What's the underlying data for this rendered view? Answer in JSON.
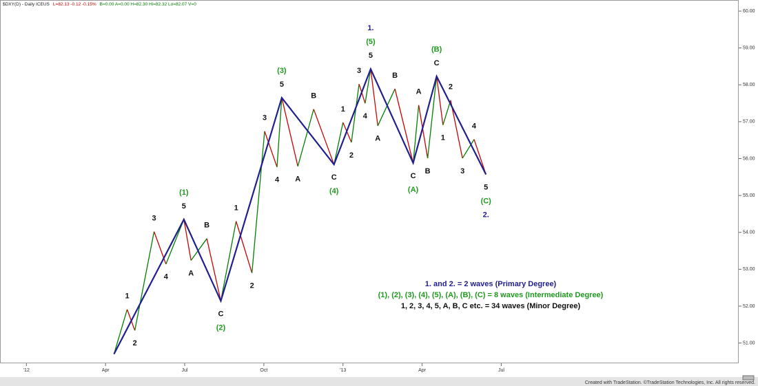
{
  "chart_data": {
    "type": "line",
    "header": [
      {
        "text": "$DXY(D) - Daily  ICEUS",
        "color": "#222222"
      },
      {
        "text": "L=82.13  -0.12  -0.15%",
        "color": "#cc0000"
      },
      {
        "text": "B=0.00  A=0.00  H=82.30  Hi=82.32  Lo=82.07  V=0",
        "color": "#008000"
      }
    ],
    "footer": "Created with TradeStation. ©TradeStation Technologies, Inc. All rights reserved.",
    "xlim": [
      -1,
      27
    ],
    "xticks": [
      {
        "value": 0,
        "label": "'12"
      },
      {
        "value": 3,
        "label": "Apr"
      },
      {
        "value": 6,
        "label": "Jul"
      },
      {
        "value": 9,
        "label": "Oct"
      },
      {
        "value": 12,
        "label": "'13"
      },
      {
        "value": 15,
        "label": "Apr"
      },
      {
        "value": 18,
        "label": "Jul"
      }
    ],
    "ylim": [
      50.45,
      60.3
    ],
    "yticks": [
      {
        "value": 51,
        "label": "51.00"
      },
      {
        "value": 52,
        "label": "52.00"
      },
      {
        "value": 53,
        "label": "53.00"
      },
      {
        "value": 54,
        "label": "54.00"
      },
      {
        "value": 55,
        "label": "55.00"
      },
      {
        "value": 56,
        "label": "56.00"
      },
      {
        "value": 57,
        "label": "57.00"
      },
      {
        "value": 58,
        "label": "58.00"
      },
      {
        "value": 59,
        "label": "59.00"
      },
      {
        "value": 60,
        "label": "60.00"
      }
    ],
    "series": [
      {
        "up_color": "#008000",
        "down_color": "#cc0000",
        "label_color": "#111111",
        "x": [
          3.32,
          3.82,
          4.11,
          4.84,
          5.29,
          5.97,
          6.24,
          6.84,
          7.37,
          7.95,
          8.55,
          9.03,
          9.5,
          9.68,
          10.29,
          10.89,
          11.66,
          12.0,
          12.32,
          12.61,
          12.84,
          13.05,
          13.32,
          13.97,
          14.66,
          14.87,
          15.21,
          15.55,
          15.79,
          16.08,
          16.53,
          16.97,
          17.42
        ],
        "values": [
          50.7,
          51.91,
          51.34,
          54.02,
          53.14,
          54.35,
          53.24,
          53.83,
          52.14,
          54.3,
          52.9,
          56.74,
          55.77,
          57.65,
          55.79,
          57.34,
          55.84,
          56.98,
          56.44,
          58.02,
          57.5,
          58.43,
          56.89,
          57.89,
          55.88,
          57.45,
          56.01,
          58.23,
          56.91,
          57.58,
          56.01,
          56.52,
          55.57
        ],
        "labels": [
          null,
          "1",
          "2",
          "3",
          "4",
          "5",
          "A",
          "B",
          "C",
          "1",
          "2",
          "3",
          "4",
          "5",
          "A",
          "B",
          "C",
          "1",
          "2",
          "3",
          "4",
          "5",
          "A",
          "B",
          "C",
          "A",
          "B",
          "C",
          "1",
          "2",
          "3",
          "4",
          "5"
        ]
      },
      {
        "color": "#1f1f8f",
        "x": [
          3.32,
          5.97,
          7.37,
          9.68,
          11.66,
          13.05,
          14.66,
          15.55,
          17.42
        ],
        "values": [
          50.7,
          54.35,
          52.14,
          57.65,
          55.84,
          58.43,
          55.88,
          58.23,
          55.57
        ],
        "intermediate_color": "#1f9a1f",
        "intermediate_labels": [
          null,
          "(1)",
          "(2)",
          "(3)",
          "(4)",
          "(5)",
          "(A)",
          "(B)",
          "(C)"
        ],
        "primary_color": "#1f1f8f",
        "primary_labels": [
          null,
          null,
          null,
          null,
          null,
          "1.",
          null,
          null,
          "2."
        ]
      }
    ],
    "notes": [
      {
        "text": "1. and 2. = 2 waves (Primary Degree)",
        "color": "#1f1f8f"
      },
      {
        "text": "(1), (2), (3), (4), (5), (A), (B), (C) = 8 waves (Intermediate Degree)",
        "color": "#1f9a1f"
      },
      {
        "text": "1, 2, 3, 4, 5, A, B, C etc. = 34 waves (Minor Degree)",
        "color": "#111111"
      }
    ]
  }
}
